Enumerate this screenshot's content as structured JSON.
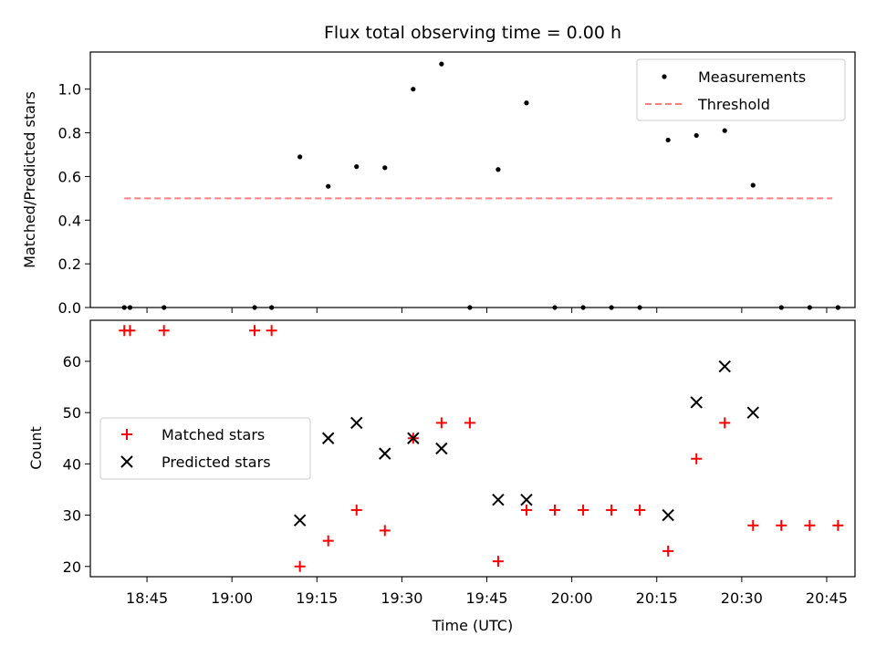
{
  "chart_data": [
    {
      "type": "scatter",
      "title": "Flux total observing time = 0.00 h",
      "xlabel": "",
      "ylabel": "Matched/Predicted stars",
      "ylim": [
        0,
        1.17
      ],
      "yticks": [
        "0.0",
        "0.2",
        "0.4",
        "0.6",
        "0.8",
        "1.0"
      ],
      "ytick_values": [
        0,
        0.2,
        0.4,
        0.6,
        0.8,
        1.0
      ],
      "legend_position": "top-right",
      "grid": false,
      "series": [
        {
          "name": "Measurements",
          "kind": "points",
          "color": "#000000",
          "x": [
            "18:41",
            "18:42",
            "18:48",
            "19:04",
            "19:07",
            "19:12",
            "19:17",
            "19:22",
            "19:27",
            "19:32",
            "19:37",
            "19:42",
            "19:47",
            "19:52",
            "19:57",
            "20:02",
            "20:07",
            "20:12",
            "20:17",
            "20:22",
            "20:27",
            "20:32",
            "20:37",
            "20:42",
            "20:47"
          ],
          "y": [
            0,
            0,
            0,
            0,
            0,
            0.69,
            0.555,
            0.645,
            0.64,
            1.0,
            1.115,
            0,
            0.632,
            0.937,
            0,
            0,
            0,
            0,
            0.767,
            0.788,
            0.81,
            0.56,
            0,
            0,
            0
          ]
        },
        {
          "name": "Threshold",
          "kind": "dashed-line",
          "color": "#ff7f7f",
          "x": [
            "18:41",
            "20:46"
          ],
          "y": [
            0.5,
            0.5
          ]
        }
      ]
    },
    {
      "type": "scatter",
      "title": "",
      "xlabel": "Time (UTC)",
      "ylabel": "Count",
      "xlim": [
        "18:35",
        "20:50"
      ],
      "xticks": [
        "18:45",
        "19:00",
        "19:15",
        "19:30",
        "19:45",
        "20:00",
        "20:15",
        "20:30",
        "20:45"
      ],
      "ylim": [
        18,
        68
      ],
      "yticks": [
        "20",
        "30",
        "40",
        "50",
        "60"
      ],
      "ytick_values": [
        20,
        30,
        40,
        50,
        60
      ],
      "legend_position": "center-left",
      "grid": false,
      "series": [
        {
          "name": "Matched stars",
          "marker": "plus",
          "color": "#ff0000",
          "x": [
            "18:41",
            "18:42",
            "18:48",
            "19:04",
            "19:07",
            "19:12",
            "19:17",
            "19:22",
            "19:27",
            "19:32",
            "19:37",
            "19:42",
            "19:47",
            "19:52",
            "19:57",
            "20:02",
            "20:07",
            "20:12",
            "20:17",
            "20:22",
            "20:27",
            "20:32",
            "20:37",
            "20:42",
            "20:47"
          ],
          "y": [
            66,
            66,
            66,
            66,
            66,
            20,
            25,
            31,
            27,
            45,
            48,
            48,
            21,
            31,
            31,
            31,
            31,
            31,
            23,
            41,
            48,
            28,
            28,
            28,
            28
          ]
        },
        {
          "name": "Predicted stars",
          "marker": "x",
          "color": "#000000",
          "x": [
            "19:12",
            "19:17",
            "19:22",
            "19:27",
            "19:32",
            "19:37",
            "19:47",
            "19:52",
            "20:17",
            "20:22",
            "20:27",
            "20:32"
          ],
          "y": [
            29,
            45,
            48,
            42,
            45,
            43,
            33,
            33,
            30,
            52,
            59,
            50
          ]
        }
      ]
    }
  ]
}
